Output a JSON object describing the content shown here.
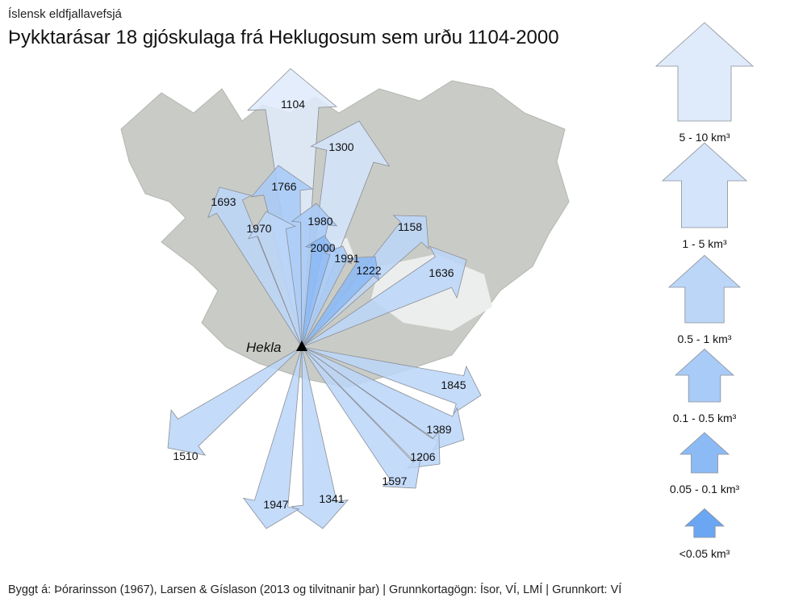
{
  "header": {
    "subtitle": "Íslensk eldfjallavefsjá",
    "title": "Þykktarásar 18 gjóskulaga frá Heklugosum sem urðu 1104-2000"
  },
  "map": {
    "volcano": "Hekla",
    "arrows": [
      {
        "label": "1104",
        "color": "#dfeafa"
      },
      {
        "label": "1300",
        "color": "#d4e4fa"
      },
      {
        "label": "1766",
        "color": "#a9cbf7"
      },
      {
        "label": "1693",
        "color": "#bcd6f8"
      },
      {
        "label": "1970",
        "color": "#bcd6f8"
      },
      {
        "label": "1980",
        "color": "#a9cbf7"
      },
      {
        "label": "1158",
        "color": "#bcd6f8"
      },
      {
        "label": "2000",
        "color": "#8cbaf5"
      },
      {
        "label": "1991",
        "color": "#a9cbf7"
      },
      {
        "label": "1222",
        "color": "#8cbaf5"
      },
      {
        "label": "1636",
        "color": "#bcd6f8"
      },
      {
        "label": "1845",
        "color": "#bcd6f8"
      },
      {
        "label": "1389",
        "color": "#bcd6f8"
      },
      {
        "label": "1206",
        "color": "#bcd6f8"
      },
      {
        "label": "1597",
        "color": "#bcd6f8"
      },
      {
        "label": "1341",
        "color": "#bcd6f8"
      },
      {
        "label": "1947",
        "color": "#bcd6f8"
      },
      {
        "label": "1510",
        "color": "#bcd6f8"
      }
    ]
  },
  "legend": {
    "items": [
      {
        "label": "5 - 10 km³",
        "color": "#dfeafa"
      },
      {
        "label": "1 - 5 km³",
        "color": "#d4e4fa"
      },
      {
        "label": "0.5 - 1 km³",
        "color": "#bcd6f8"
      },
      {
        "label": "0.1 - 0.5 km³",
        "color": "#a9cbf7"
      },
      {
        "label": "0.05 - 0.1 km³",
        "color": "#8cbaf5"
      },
      {
        "label": "<0.05 km³",
        "color": "#6aa6f2"
      }
    ]
  },
  "footer": "Byggt á: Þórarinsson (1967), Larsen & Gíslason (2013 og tilvitnanir þar) | Grunnkortagögn: Ísor, VÍ, LMÍ | Grunnkort: VÍ"
}
